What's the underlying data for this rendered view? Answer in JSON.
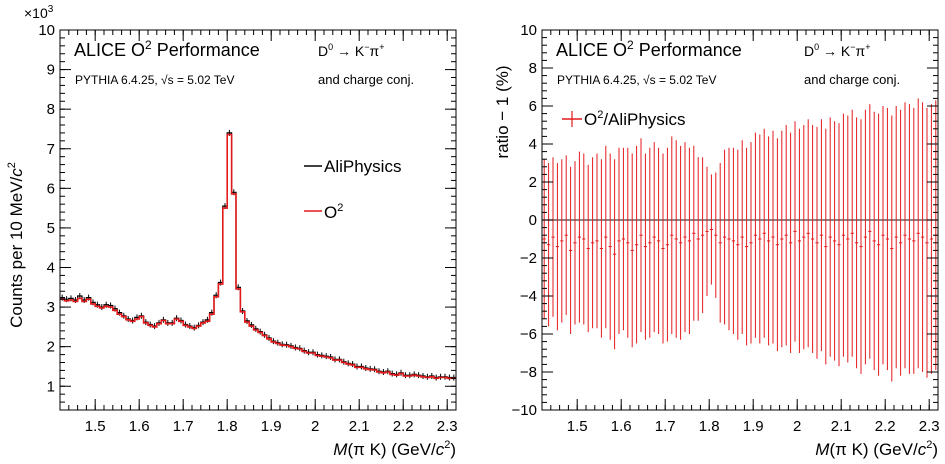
{
  "colors": {
    "aliphysics": "#000000",
    "o2": "#e41a1c",
    "frame": "#000000"
  },
  "chart_data": [
    {
      "type": "line",
      "variant": "histogram-step",
      "title": "ALICE O2 Performance",
      "title_main": "ALICE O",
      "title_sup": "2",
      "title_rest": " Performance",
      "decay_label": "D0 → K−π+",
      "generator_label": "PYTHIA 6.4.25, √s = 5.02 TeV",
      "charge_conj_label": "and charge conj.",
      "xlabel": "M(π K) (GeV/c2)",
      "ylabel": "Counts per 10 MeV/c2",
      "y_multiplier": "×10^3",
      "xlim": [
        1.42,
        2.32
      ],
      "ylim": [
        0.4,
        10
      ],
      "xticks": [
        1.5,
        1.6,
        1.7,
        1.8,
        1.9,
        2.0,
        2.1,
        2.2,
        2.3
      ],
      "xtick_labels": [
        "1.5",
        "1.6",
        "1.7",
        "1.8",
        "1.9",
        "2",
        "2.1",
        "2.2",
        "2.3"
      ],
      "yticks": [
        1,
        2,
        3,
        4,
        5,
        6,
        7,
        8,
        9,
        10
      ],
      "ytick_labels": [
        "1",
        "2",
        "3",
        "4",
        "5",
        "6",
        "7",
        "8",
        "9",
        "10"
      ],
      "legend": {
        "placement": "center-right",
        "entries": [
          "AliPhysics",
          "O2"
        ]
      },
      "grid": false,
      "bin_width": 0.01,
      "bin_centers_start": 1.425,
      "series": [
        {
          "name": "AliPhysics",
          "color": "#000000",
          "values": [
            3.24,
            3.2,
            3.22,
            3.18,
            3.28,
            3.18,
            3.24,
            3.12,
            3.06,
            3.0,
            3.06,
            3.04,
            2.96,
            2.86,
            2.78,
            2.7,
            2.66,
            2.74,
            2.78,
            2.62,
            2.56,
            2.52,
            2.6,
            2.68,
            2.6,
            2.6,
            2.72,
            2.66,
            2.56,
            2.52,
            2.48,
            2.54,
            2.62,
            2.68,
            2.86,
            3.3,
            3.62,
            5.55,
            7.4,
            5.9,
            3.5,
            2.9,
            2.65,
            2.55,
            2.45,
            2.38,
            2.3,
            2.22,
            2.14,
            2.1,
            2.06,
            2.05,
            2.02,
            1.98,
            1.96,
            1.9,
            1.86,
            1.86,
            1.8,
            1.78,
            1.76,
            1.74,
            1.68,
            1.68,
            1.62,
            1.58,
            1.56,
            1.5,
            1.5,
            1.46,
            1.44,
            1.43,
            1.38,
            1.36,
            1.38,
            1.32,
            1.3,
            1.34,
            1.28,
            1.28,
            1.3,
            1.28,
            1.26,
            1.24,
            1.26,
            1.22,
            1.24,
            1.24,
            1.22,
            1.22
          ]
        },
        {
          "name": "O2",
          "color": "#e41a1c",
          "values": [
            3.2,
            3.16,
            3.18,
            3.14,
            3.22,
            3.14,
            3.2,
            3.08,
            3.02,
            2.98,
            3.02,
            3.0,
            2.92,
            2.82,
            2.76,
            2.68,
            2.64,
            2.7,
            2.76,
            2.6,
            2.54,
            2.5,
            2.58,
            2.66,
            2.58,
            2.58,
            2.7,
            2.64,
            2.54,
            2.5,
            2.46,
            2.52,
            2.6,
            2.64,
            2.82,
            3.26,
            3.58,
            5.5,
            7.36,
            5.86,
            3.46,
            2.88,
            2.62,
            2.52,
            2.42,
            2.36,
            2.28,
            2.2,
            2.12,
            2.08,
            2.04,
            2.03,
            2.0,
            1.96,
            1.94,
            1.88,
            1.84,
            1.84,
            1.78,
            1.76,
            1.74,
            1.72,
            1.66,
            1.66,
            1.6,
            1.56,
            1.54,
            1.48,
            1.48,
            1.44,
            1.42,
            1.41,
            1.36,
            1.34,
            1.36,
            1.3,
            1.28,
            1.32,
            1.26,
            1.26,
            1.28,
            1.26,
            1.24,
            1.22,
            1.24,
            1.2,
            1.22,
            1.22,
            1.2,
            1.2
          ]
        }
      ]
    },
    {
      "type": "scatter",
      "variant": "points-with-error-bars",
      "title": "ALICE O2 Performance",
      "title_main": "ALICE O",
      "title_sup": "2",
      "title_rest": " Performance",
      "decay_label": "D0 → K−π+",
      "generator_label": "PYTHIA 6.4.25, √s = 5.02 TeV",
      "charge_conj_label": "and charge conj.",
      "xlabel": "M(π K) (GeV/c2)",
      "ylabel": "ratio − 1 (%)",
      "xlim": [
        1.42,
        2.32
      ],
      "ylim": [
        -10,
        10
      ],
      "xticks": [
        1.5,
        1.6,
        1.7,
        1.8,
        1.9,
        2.0,
        2.1,
        2.2,
        2.3
      ],
      "xtick_labels": [
        "1.5",
        "1.6",
        "1.7",
        "1.8",
        "1.9",
        "2",
        "2.1",
        "2.2",
        "2.3"
      ],
      "yticks": [
        -10,
        -8,
        -6,
        -4,
        -2,
        0,
        2,
        4,
        6,
        8,
        10
      ],
      "ytick_labels": [
        "−10",
        "−8",
        "−6",
        "−4",
        "−2",
        "0",
        "2",
        "4",
        "6",
        "8",
        "10"
      ],
      "reference_line": 0,
      "legend": {
        "placement": "top-left",
        "entries": [
          "O2/AliPhysics"
        ]
      },
      "grid": false,
      "bin_width": 0.01,
      "bin_centers_start": 1.425,
      "series": [
        {
          "name": "O2/AliPhysics",
          "color": "#e41a1c",
          "values": [
            -1.0,
            -1.3,
            -0.9,
            -1.4,
            -1.1,
            -0.8,
            -1.6,
            -1.2,
            -0.9,
            -1.0,
            -1.5,
            -1.2,
            -1.1,
            -1.5,
            -0.9,
            -1.4,
            -1.8,
            -1.1,
            -1.0,
            -1.2,
            -1.6,
            -1.3,
            -0.8,
            -1.4,
            -1.2,
            -0.9,
            -1.1,
            -1.5,
            -1.3,
            -0.8,
            -1.0,
            -1.2,
            -0.9,
            -1.1,
            -0.7,
            -1.0,
            -0.8,
            -0.6,
            -0.5,
            -0.8,
            -1.2,
            -0.9,
            -1.0,
            -1.1,
            -1.3,
            -0.9,
            -1.4,
            -1.2,
            -0.8,
            -1.0,
            -0.7,
            -1.1,
            -0.9,
            -1.3,
            -1.0,
            -0.8,
            -1.2,
            -0.6,
            -1.1,
            -0.9,
            -0.7,
            -1.0,
            -1.2,
            -0.8,
            -1.4,
            -0.9,
            -1.1,
            -1.3,
            -0.8,
            -1.0,
            -0.7,
            -1.2,
            -1.4,
            -0.9,
            -0.6,
            -1.1,
            -1.3,
            -0.8,
            -1.0,
            -1.5,
            -0.9,
            -1.2,
            -0.8,
            -1.0,
            -1.1,
            -0.7,
            -0.9,
            -1.2,
            -1.0,
            -0.8
          ],
          "errors": [
            4.2,
            4.3,
            4.2,
            4.4,
            4.3,
            4.2,
            4.4,
            4.3,
            4.5,
            4.5,
            4.4,
            4.5,
            4.6,
            4.7,
            4.8,
            4.9,
            5.0,
            4.9,
            4.8,
            5.0,
            5.1,
            5.2,
            5.1,
            4.9,
            5.0,
            5.0,
            4.9,
            5.0,
            5.1,
            5.2,
            5.2,
            5.1,
            5.0,
            4.9,
            4.6,
            4.3,
            4.1,
            3.4,
            2.9,
            3.3,
            4.2,
            4.6,
            4.8,
            4.9,
            5.0,
            5.1,
            5.2,
            5.3,
            5.4,
            5.5,
            5.5,
            5.5,
            5.6,
            5.6,
            5.7,
            5.8,
            5.8,
            5.8,
            5.9,
            5.9,
            6.0,
            6.0,
            6.1,
            6.1,
            6.2,
            6.3,
            6.3,
            6.4,
            6.4,
            6.5,
            6.5,
            6.6,
            6.7,
            6.7,
            6.7,
            6.8,
            6.9,
            6.8,
            6.9,
            7.0,
            6.9,
            7.0,
            7.0,
            7.1,
            7.0,
            7.1,
            7.1,
            7.1,
            7.1,
            7.1
          ]
        }
      ]
    }
  ]
}
